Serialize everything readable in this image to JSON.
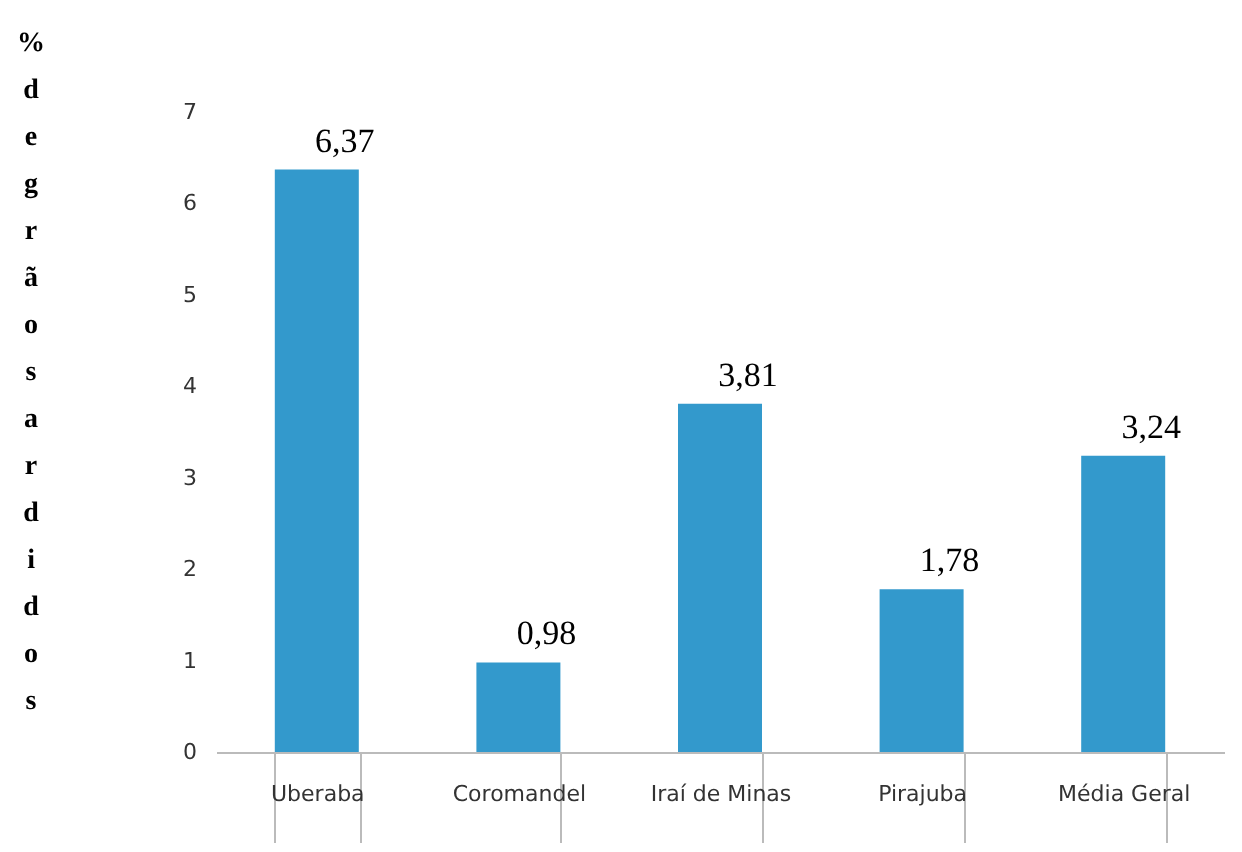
{
  "chart_data": {
    "type": "bar",
    "ylabel": "% de grãos ardidos",
    "categories": [
      "Uberaba",
      "Coromandel",
      "Iraí de Minas",
      "Pirajuba",
      "Média Geral"
    ],
    "values": [
      6.37,
      0.98,
      3.81,
      1.78,
      3.24
    ],
    "value_labels": [
      "6,37",
      "0,98",
      "3,81",
      "1,78",
      "3,24"
    ],
    "color": "#3399cc",
    "ylim": [
      0,
      7
    ],
    "yticks": [
      0,
      1,
      2,
      3,
      4,
      5,
      6,
      7
    ],
    "grid": false
  }
}
